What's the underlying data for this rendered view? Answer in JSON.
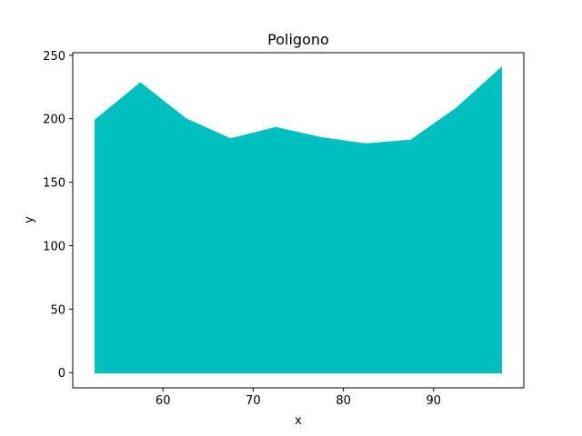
{
  "chart_data": {
    "type": "area",
    "title": "Poligono",
    "xlabel": "x",
    "ylabel": "y",
    "xlim": [
      50,
      100
    ],
    "ylim": [
      -12,
      252
    ],
    "xticks": [
      60,
      70,
      80,
      90
    ],
    "yticks": [
      0,
      50,
      100,
      150,
      200,
      250
    ],
    "fill_color": "#00BFBF",
    "grid": false,
    "x": [
      52.5,
      57.5,
      62.5,
      67.5,
      72.5,
      77.5,
      82.5,
      87.5,
      92.5,
      97.5
    ],
    "y": [
      199,
      228,
      200,
      184,
      193,
      185,
      180,
      183,
      208,
      240
    ],
    "baseline": 0
  }
}
